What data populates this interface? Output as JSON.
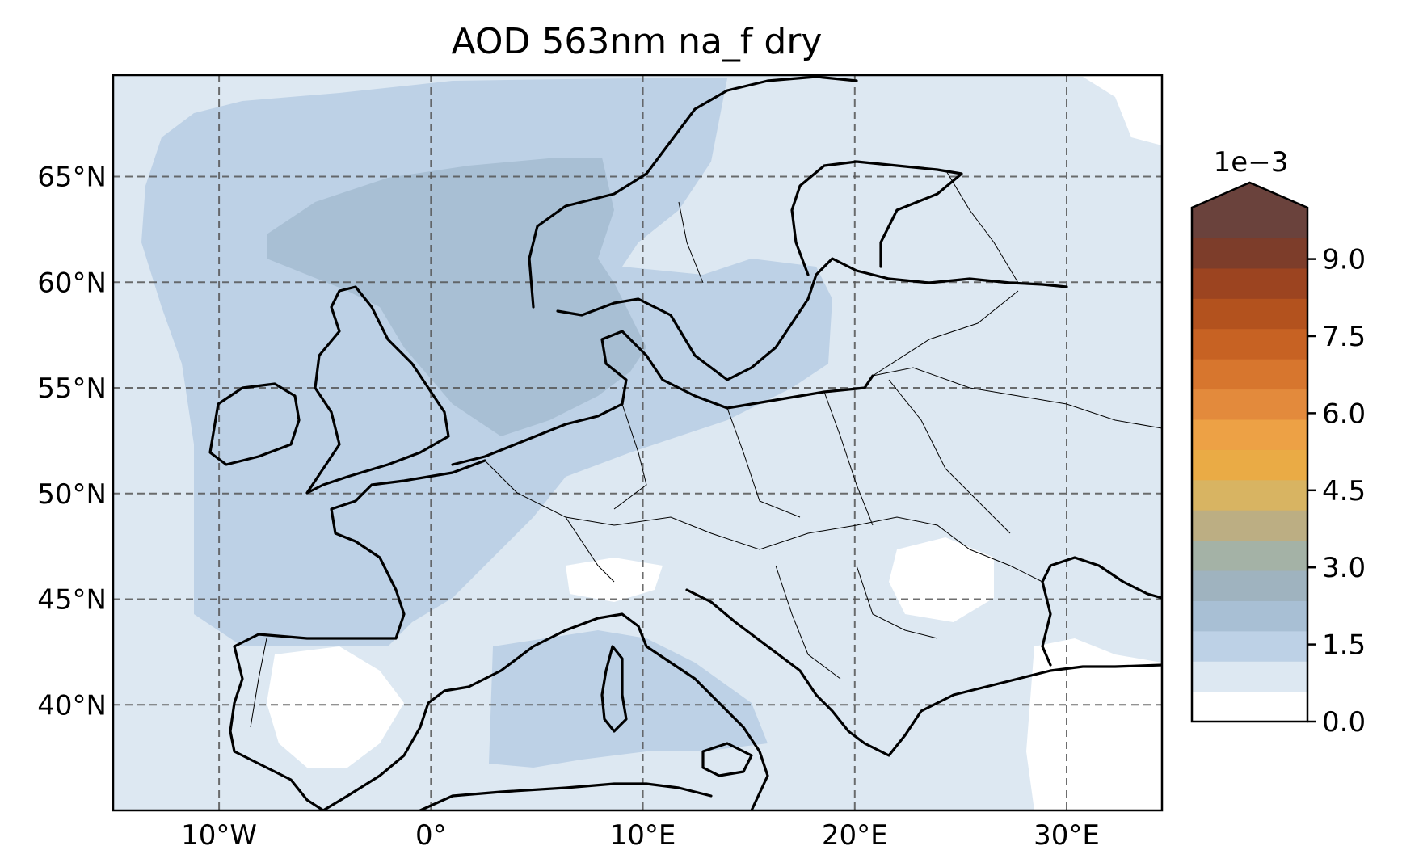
{
  "chart_data": {
    "type": "heatmap",
    "title": "AOD 563nm na_f dry",
    "projection": "PlateCarree",
    "extent": {
      "lon": [
        -15,
        34.5
      ],
      "lat": [
        35,
        69.8
      ]
    },
    "x_ticks": [
      {
        "value": -10,
        "label": "10°W"
      },
      {
        "value": 0,
        "label": "0°"
      },
      {
        "value": 10,
        "label": "10°E"
      },
      {
        "value": 20,
        "label": "20°E"
      },
      {
        "value": 30,
        "label": "30°E"
      }
    ],
    "y_ticks": [
      {
        "value": 40,
        "label": "40°N"
      },
      {
        "value": 45,
        "label": "45°N"
      },
      {
        "value": 50,
        "label": "50°N"
      },
      {
        "value": 55,
        "label": "55°N"
      },
      {
        "value": 60,
        "label": "60°N"
      },
      {
        "value": 65,
        "label": "65°N"
      }
    ],
    "grid": true,
    "colorbar": {
      "multiplier_label": "1e−3",
      "min": 0,
      "max": 10,
      "extend": "max",
      "ticks": [
        {
          "value": 0,
          "label": "0.0"
        },
        {
          "value": 1.5,
          "label": "1.5"
        },
        {
          "value": 3,
          "label": "3.0"
        },
        {
          "value": 4.5,
          "label": "4.5"
        },
        {
          "value": 6,
          "label": "6.0"
        },
        {
          "value": 7.5,
          "label": "7.5"
        },
        {
          "value": 9,
          "label": "9.0"
        }
      ],
      "colors": [
        "#ffffff",
        "#dde8f2",
        "#bdd1e6",
        "#a8bfd4",
        "#9fb3bf",
        "#a4b2a6",
        "#bcae83",
        "#d8b462",
        "#eaab45",
        "#eda145",
        "#e38a3c",
        "#d7762e",
        "#c76223",
        "#b3521e",
        "#9c4420",
        "#7d3d2a",
        "#6a423c"
      ],
      "extend_color": "#6a423c"
    },
    "field_levels": [
      {
        "level": 0,
        "value_range": [
          0.0,
          0.5
        ],
        "color": "#ffffff"
      },
      {
        "level": 1,
        "value_range": [
          0.5,
          1.0
        ],
        "color": "#dde8f2"
      },
      {
        "level": 2,
        "value_range": [
          1.0,
          1.5
        ],
        "color": "#bdd1e6"
      },
      {
        "level": 3,
        "value_range": [
          1.5,
          2.0
        ],
        "color": "#a8bfd4"
      }
    ]
  }
}
